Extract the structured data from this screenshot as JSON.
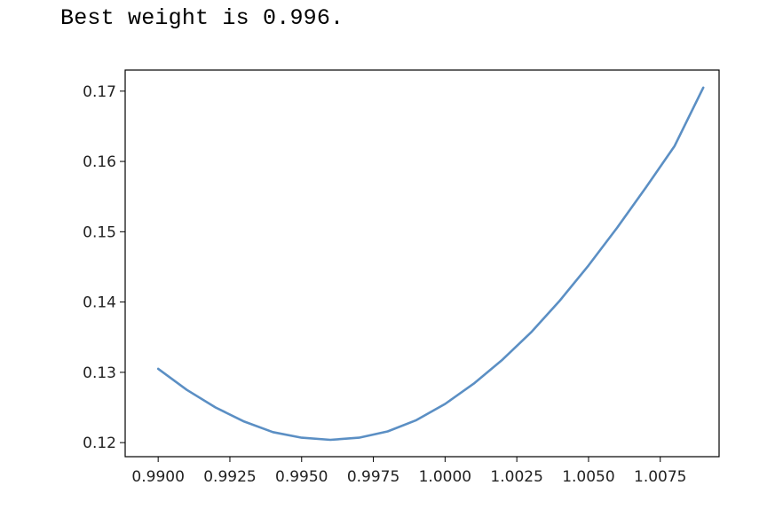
{
  "output": {
    "text": "Best weight is 0.996."
  },
  "chart_data": {
    "type": "line",
    "title": "",
    "xlabel": "",
    "ylabel": "",
    "xlim": [
      0.98885,
      1.00955
    ],
    "ylim": [
      0.118,
      0.173
    ],
    "xticks": [
      0.99,
      0.9925,
      0.995,
      0.9975,
      1.0,
      1.0025,
      1.005,
      1.0075
    ],
    "xtick_labels": [
      "0.9900",
      "0.9925",
      "0.9950",
      "0.9975",
      "1.0000",
      "1.0025",
      "1.0050",
      "1.0075"
    ],
    "yticks": [
      0.12,
      0.13,
      0.14,
      0.15,
      0.16,
      0.17
    ],
    "ytick_labels": [
      "0.12",
      "0.13",
      "0.14",
      "0.15",
      "0.16",
      "0.17"
    ],
    "grid": false,
    "line_color": "#5b8fc4",
    "series": [
      {
        "x": [
          0.99,
          0.991,
          0.992,
          0.993,
          0.994,
          0.995,
          0.996,
          0.997,
          0.998,
          0.999,
          1.0,
          1.001,
          1.002,
          1.003,
          1.004,
          1.005,
          1.006,
          1.007,
          1.008,
          1.009
        ],
        "values": [
          0.1305,
          0.1275,
          0.125,
          0.123,
          0.1215,
          0.1207,
          0.1204,
          0.1207,
          0.1216,
          0.1232,
          0.1255,
          0.1284,
          0.1318,
          0.1357,
          0.1402,
          0.1452,
          0.1506,
          0.1563,
          0.1622,
          0.1705
        ]
      }
    ]
  }
}
